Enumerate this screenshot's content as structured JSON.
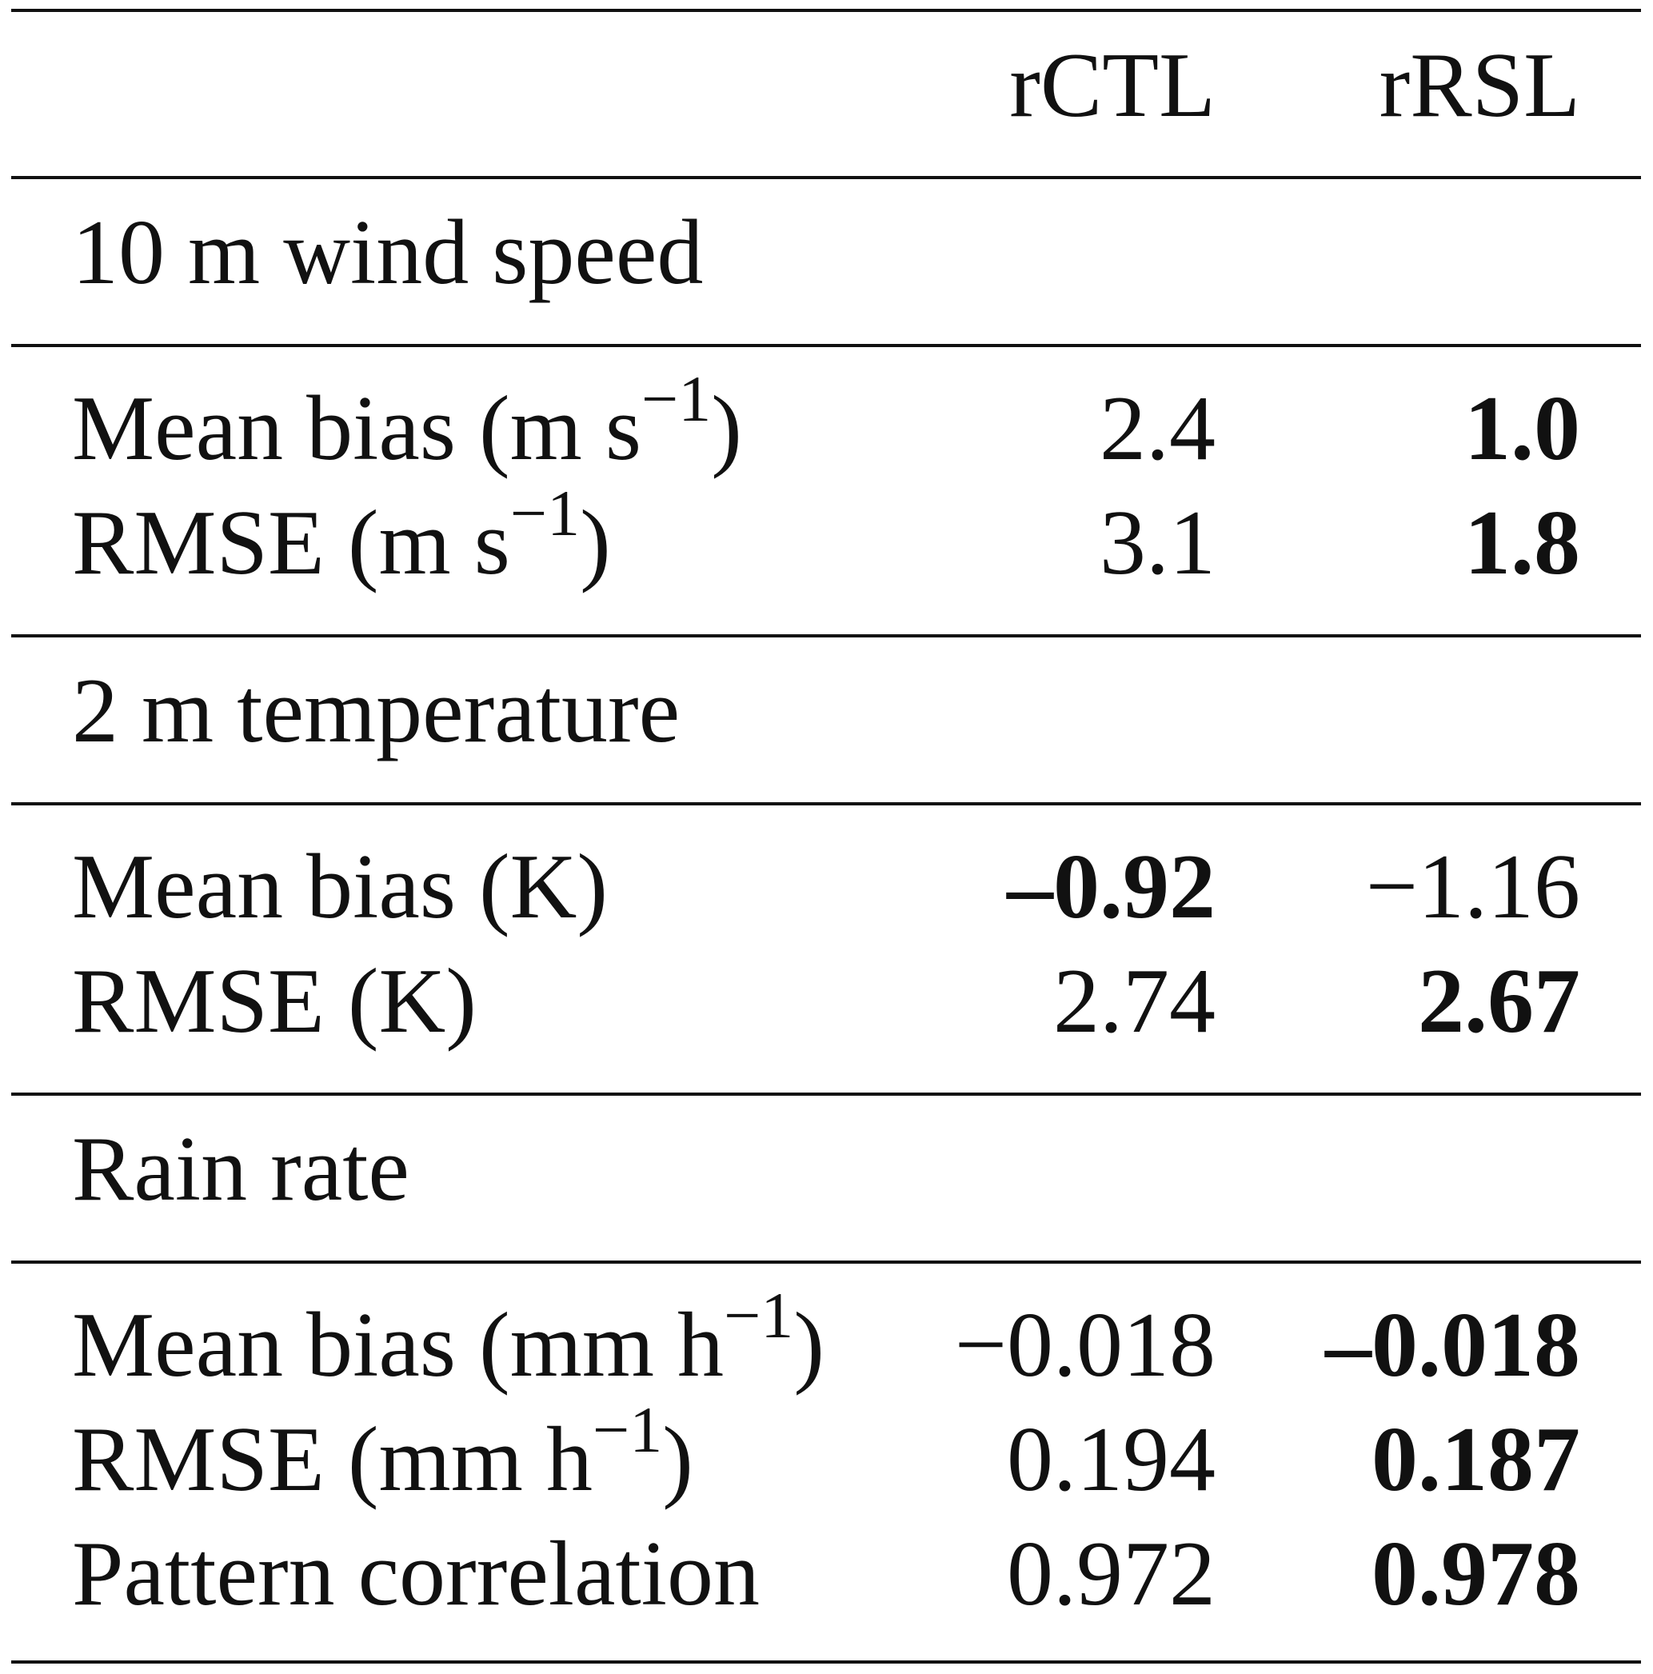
{
  "header": {
    "columns": [
      "rCTL",
      "rRSL"
    ]
  },
  "sections": [
    {
      "title": "10 m wind speed",
      "rows": [
        {
          "label": {
            "text": "Mean bias (m s",
            "sup": "−1",
            "after": ")"
          },
          "values": [
            "2.4",
            "1.0"
          ],
          "bold": [
            false,
            true
          ]
        },
        {
          "label": {
            "text": "RMSE (m s",
            "sup": "−1",
            "after": ")"
          },
          "values": [
            "3.1",
            "1.8"
          ],
          "bold": [
            false,
            true
          ]
        }
      ]
    },
    {
      "title": "2 m temperature",
      "rows": [
        {
          "label": {
            "text": "Mean bias (K)"
          },
          "values": [
            "–0.92",
            "−1.16"
          ],
          "bold": [
            true,
            false
          ]
        },
        {
          "label": {
            "text": "RMSE (K)"
          },
          "values": [
            "2.74",
            "2.67"
          ],
          "bold": [
            false,
            true
          ]
        }
      ]
    },
    {
      "title": "Rain rate",
      "rows": [
        {
          "label": {
            "text": "Mean bias (mm h",
            "sup": "−1",
            "after": ")"
          },
          "values": [
            "−0.018",
            "–0.018"
          ],
          "bold": [
            false,
            true
          ]
        },
        {
          "label": {
            "text": "RMSE (mm h",
            "sup": "−1",
            "after": ")"
          },
          "values": [
            "0.194",
            "0.187"
          ],
          "bold": [
            false,
            true
          ]
        },
        {
          "label": {
            "text": "Pattern correlation"
          },
          "values": [
            "0.972",
            "0.978"
          ],
          "bold": [
            false,
            true
          ]
        }
      ]
    }
  ]
}
